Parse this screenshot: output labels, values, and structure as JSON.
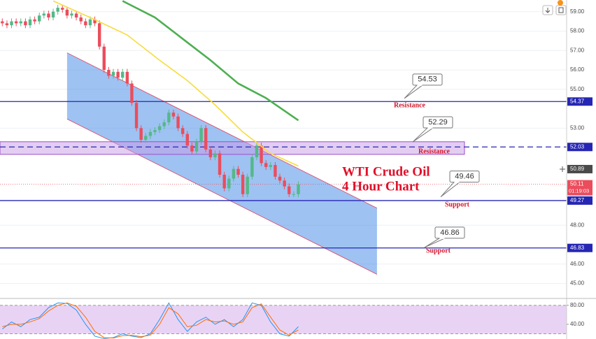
{
  "chart_data": [
    {
      "type": "candlestick",
      "title": "WTI Crude Oil",
      "subtitle": "4 Hour Chart",
      "open": [
        58.5,
        58.4,
        58.3,
        58.5,
        58.4,
        58.5,
        58.3,
        58.6,
        58.5,
        58.8,
        58.9,
        58.7,
        59.0,
        59.2,
        59.1,
        58.8,
        58.9,
        58.7,
        58.5,
        58.3,
        58.6,
        58.4,
        57.2,
        56.0,
        55.7,
        55.9,
        55.6,
        55.9,
        55.3,
        54.3,
        53.0,
        52.4,
        52.6,
        52.8,
        52.9,
        53.1,
        53.3,
        53.8,
        53.6,
        53.0,
        52.7,
        52.1,
        51.8,
        52.3,
        53.0,
        51.9,
        51.5,
        51.7,
        50.6,
        49.9,
        50.4,
        50.9,
        50.6,
        49.6,
        50.5,
        51.5,
        52.1,
        51.2,
        51.0,
        51.1,
        50.5,
        50.3,
        50.0,
        49.6,
        49.6
      ],
      "high": [
        58.65,
        58.55,
        58.65,
        58.65,
        58.65,
        58.65,
        58.75,
        58.75,
        58.95,
        59.05,
        59.05,
        59.15,
        59.35,
        59.35,
        59.25,
        59.05,
        59.05,
        58.85,
        58.65,
        58.75,
        58.75,
        58.55,
        57.35,
        56.15,
        56.05,
        56.05,
        56.05,
        56.05,
        55.45,
        54.45,
        53.15,
        52.75,
        52.95,
        53.05,
        53.25,
        53.45,
        53.95,
        53.95,
        53.75,
        53.15,
        52.85,
        52.25,
        52.45,
        53.15,
        53.15,
        52.05,
        51.85,
        51.85,
        50.75,
        50.55,
        51.05,
        51.05,
        50.75,
        50.65,
        51.65,
        52.25,
        52.25,
        51.35,
        51.25,
        51.25,
        50.65,
        50.45,
        50.15,
        49.75,
        50.26
      ],
      "low": [
        58.25,
        58.15,
        58.15,
        58.25,
        58.25,
        58.15,
        58.15,
        58.35,
        58.35,
        58.65,
        58.55,
        58.55,
        58.85,
        58.95,
        58.65,
        58.65,
        58.55,
        58.35,
        58.15,
        58.15,
        58.25,
        57.05,
        55.85,
        55.55,
        55.55,
        55.45,
        55.45,
        55.15,
        54.15,
        52.85,
        52.25,
        52.25,
        52.45,
        52.65,
        52.75,
        52.95,
        53.15,
        53.45,
        52.85,
        52.55,
        51.95,
        51.65,
        51.65,
        52.15,
        51.75,
        51.35,
        51.35,
        50.45,
        49.75,
        49.75,
        50.25,
        50.45,
        49.45,
        49.45,
        50.35,
        51.35,
        51.05,
        50.85,
        50.85,
        50.35,
        50.15,
        49.85,
        49.45,
        49.45,
        49.45
      ],
      "close": [
        58.4,
        58.3,
        58.5,
        58.4,
        58.5,
        58.3,
        58.6,
        58.5,
        58.8,
        58.9,
        58.7,
        59.0,
        59.2,
        59.1,
        58.8,
        58.9,
        58.7,
        58.5,
        58.3,
        58.6,
        58.4,
        57.2,
        56.0,
        55.7,
        55.9,
        55.6,
        55.9,
        55.3,
        54.3,
        53.0,
        52.4,
        52.6,
        52.8,
        52.9,
        53.1,
        53.3,
        53.8,
        53.6,
        53.0,
        52.7,
        52.1,
        51.8,
        52.3,
        53.0,
        51.9,
        51.5,
        51.7,
        50.6,
        49.9,
        50.4,
        50.9,
        50.6,
        49.6,
        50.5,
        51.5,
        52.1,
        51.2,
        51.0,
        51.1,
        50.5,
        50.3,
        50.0,
        49.6,
        49.6,
        50.11
      ],
      "up_color": "#53b987",
      "down_color": "#eb4d5c",
      "xlim": [
        -0.5,
        122
      ],
      "ylim": [
        44.3,
        59.6
      ],
      "yticks": [
        {
          "value": 59,
          "label": "59.00"
        },
        {
          "value": 58,
          "label": "58.00"
        },
        {
          "value": 57,
          "label": "57.00"
        },
        {
          "value": 56,
          "label": "56.00"
        },
        {
          "value": 55,
          "label": "55.00"
        },
        {
          "value": 53,
          "label": "53.00"
        },
        {
          "value": 48,
          "label": "48.00"
        },
        {
          "value": 46,
          "label": "46.00"
        },
        {
          "value": 45,
          "label": "45.00"
        }
      ],
      "grid": true,
      "moving_averages": [
        {
          "color": "#f7dc3c",
          "x": [
            11,
            19,
            27,
            34,
            40,
            46,
            52,
            58,
            64
          ],
          "values": [
            59.55,
            58.7,
            57.8,
            56.5,
            55.45,
            54.2,
            52.8,
            51.7,
            51.05
          ]
        },
        {
          "color": "#4caf50",
          "x": [
            26,
            33,
            39,
            45,
            51,
            57,
            64
          ],
          "values": [
            59.55,
            58.7,
            57.6,
            56.5,
            55.3,
            54.55,
            53.4
          ]
        }
      ],
      "channel": {
        "x": [
          14,
          81
        ],
        "upper": [
          56.88,
          48.88
        ],
        "lower": [
          53.47,
          45.47
        ],
        "color": "#3d86e6"
      },
      "zone": [
        51.65,
        52.3
      ],
      "levels": [
        {
          "value": 54.37,
          "label": "54.37",
          "style": "solid"
        },
        {
          "value": 52.03,
          "label": "52.03",
          "style": "dashed"
        },
        {
          "value": 49.27,
          "label": "49.27",
          "style": "solid"
        },
        {
          "value": 46.83,
          "label": "46.83",
          "style": "solid"
        }
      ],
      "level_color": "#2626b4",
      "crosshair_price": {
        "value": 50.89,
        "label": "50.89"
      },
      "last_price": {
        "value": 50.11,
        "label": "50.11",
        "countdown": "01:19:03"
      },
      "annotations": [
        {
          "value": 54.53,
          "note": "Resistance"
        },
        {
          "value": 52.29,
          "note": "Resistance"
        },
        {
          "value": 49.46,
          "note": "Support"
        },
        {
          "value": 46.86,
          "note": "Support"
        }
      ]
    },
    {
      "type": "line",
      "ylim": [
        9,
        93
      ],
      "yticks": [
        {
          "value": 80,
          "label": "80.00"
        },
        {
          "value": 40,
          "label": "40.00"
        }
      ],
      "band": [
        20,
        80
      ],
      "x": [
        0,
        2,
        4,
        6,
        8,
        10,
        12,
        14,
        16,
        18,
        20,
        22,
        24,
        26,
        28,
        30,
        32,
        34,
        36,
        38,
        40,
        42,
        44,
        46,
        48,
        50,
        52,
        54,
        56,
        58,
        60,
        62,
        64
      ],
      "series": [
        {
          "color": "#2196f3",
          "values": [
            30,
            45,
            35,
            50,
            55,
            75,
            85,
            84,
            70,
            40,
            15,
            10,
            12,
            20,
            15,
            12,
            20,
            50,
            85,
            50,
            25,
            45,
            55,
            40,
            50,
            35,
            50,
            85,
            80,
            45,
            20,
            15,
            35
          ]
        },
        {
          "color": "#ff6d00",
          "values": [
            35,
            40,
            40,
            45,
            52,
            68,
            80,
            85,
            78,
            55,
            25,
            12,
            11,
            16,
            17,
            14,
            17,
            40,
            75,
            62,
            35,
            38,
            50,
            45,
            47,
            40,
            45,
            75,
            83,
            55,
            28,
            17,
            28
          ]
        }
      ]
    }
  ]
}
